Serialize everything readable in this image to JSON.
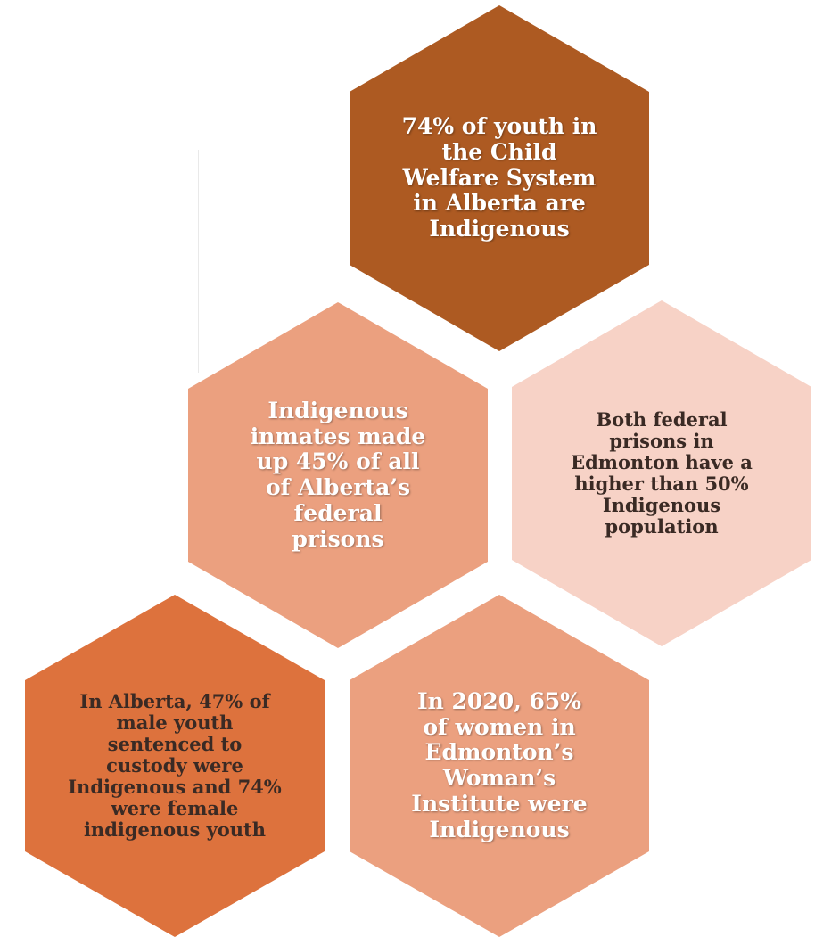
{
  "colors": {
    "dark_brown": "#ad5a22",
    "salmon": "#eba07f",
    "light_pink": "#f7d2c6",
    "orange": "#dd723d"
  },
  "hexagons": {
    "top": {
      "text": "74% of youth in the Child Welfare System in Alberta are Indigenous",
      "color": "#ad5a22"
    },
    "mid_left": {
      "text": "Indigenous inmates made up 45% of all of Alberta’s federal prisons",
      "color": "#eba07f"
    },
    "mid_right": {
      "text": "Both federal prisons in Edmonton have a higher than 50% Indigenous population",
      "color": "#f7d2c6"
    },
    "bottom_left": {
      "text": "In Alberta, 47% of male youth sentenced to custody were Indigenous and 74% were female indigenous youth",
      "color": "#dd723d"
    },
    "bottom_center": {
      "text": "In 2020, 65% of women in Edmonton’s Woman’s Institute were Indigenous",
      "color": "#eba07f"
    }
  }
}
